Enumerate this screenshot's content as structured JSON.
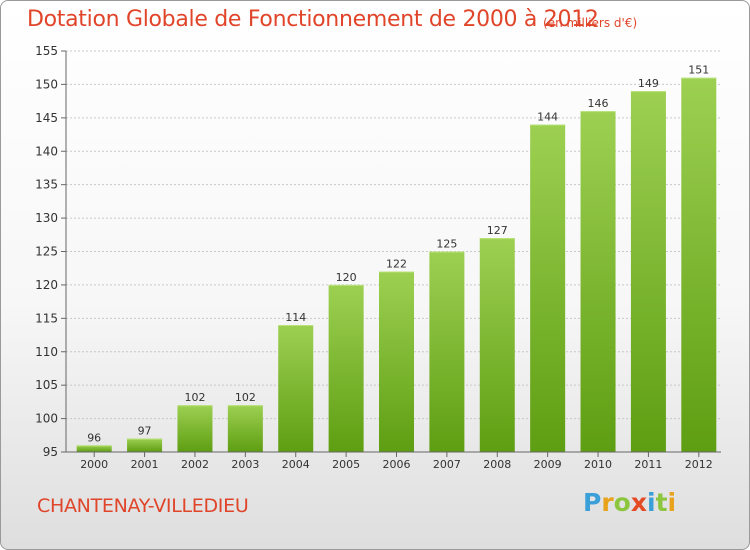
{
  "header": {
    "title": "Dotation Globale de Fonctionnement de 2000 à 2012",
    "unit": "(en milliers d'€)"
  },
  "footer": {
    "commune": "CHANTENAY-VILLEDIEU",
    "logo_letters": [
      "P",
      "r",
      "o",
      "x",
      "i",
      "t",
      "i"
    ],
    "logo_colors": [
      "#3b9fd8",
      "#e8a21b",
      "#8cc63f",
      "#e44b25",
      "#3b9fd8",
      "#8cc63f",
      "#e8a21b"
    ]
  },
  "colors": {
    "title": "#e0452a",
    "bar_top": "#9dd052",
    "bar_bottom": "#5e9e12",
    "grid": "#c8c8c8",
    "axis_text": "#333333"
  },
  "chart_data": {
    "type": "bar",
    "title": "Dotation Globale de Fonctionnement de 2000 à 2012",
    "xlabel": "",
    "ylabel": "",
    "categories": [
      "2000",
      "2001",
      "2002",
      "2003",
      "2004",
      "2005",
      "2006",
      "2007",
      "2008",
      "2009",
      "2010",
      "2011",
      "2012"
    ],
    "values": [
      96,
      97,
      102,
      102,
      114,
      120,
      122,
      125,
      127,
      144,
      146,
      149,
      151
    ],
    "ylim": [
      95,
      155
    ],
    "yticks": [
      95,
      100,
      105,
      110,
      115,
      120,
      125,
      130,
      135,
      140,
      145,
      150,
      155
    ],
    "grid": true,
    "data_labels": true
  }
}
